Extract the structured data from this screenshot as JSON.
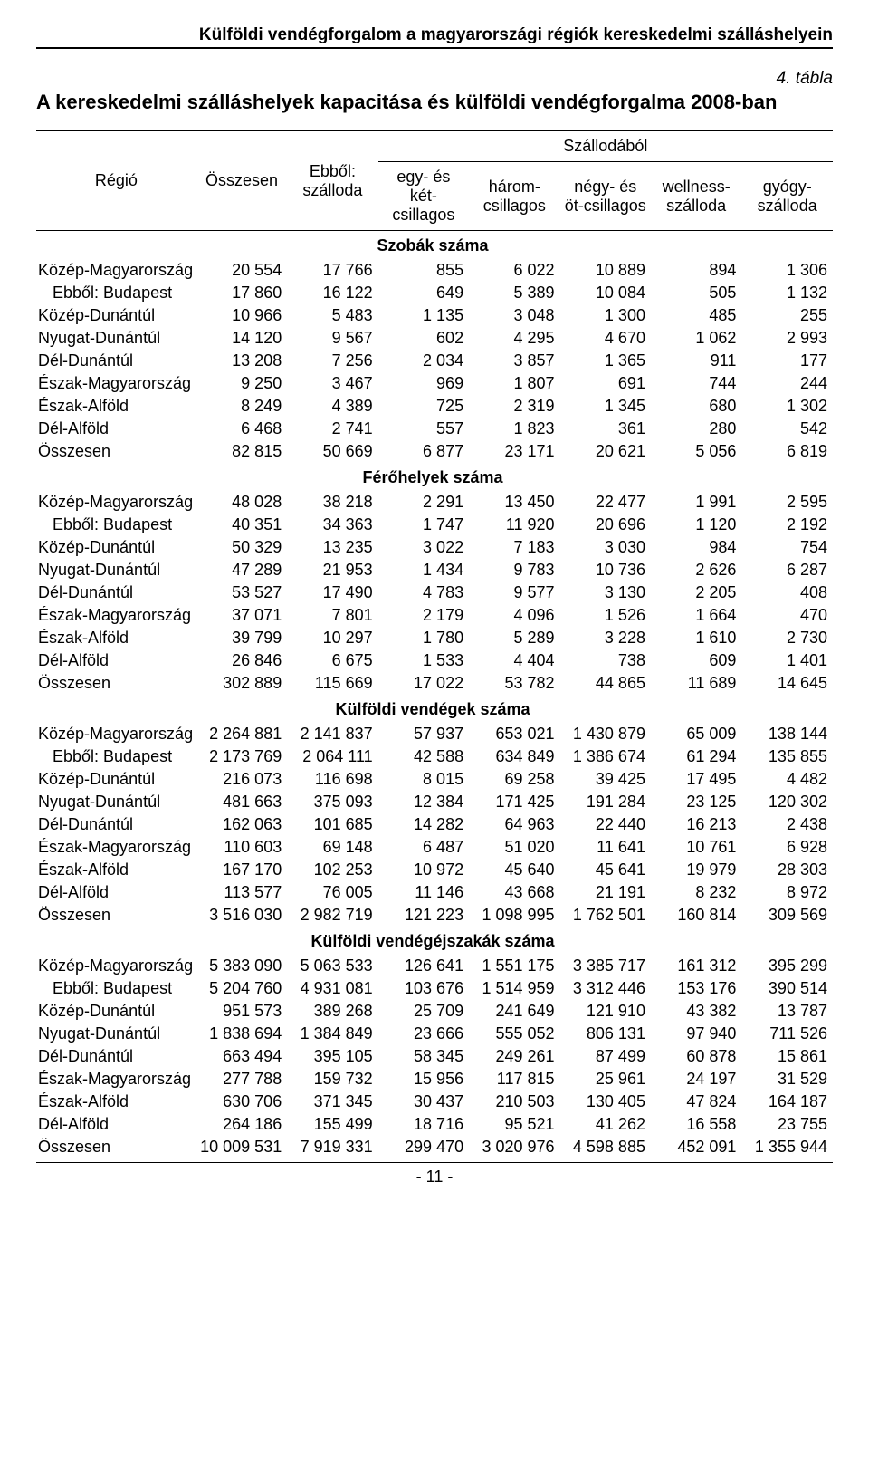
{
  "running_head": "Külföldi vendégforgalom a magyarországi régiók kereskedelmi szálláshelyein",
  "table_label": "4. tábla",
  "title": "A kereskedelmi szálláshelyek kapacitása és külföldi vendégforgalma 2008-ban",
  "page_number": "- 11 -",
  "header": {
    "region": "Régió",
    "total": "Összesen",
    "hotel_of_which": "Ebből: szálloda",
    "hotel_group": "Szállodából",
    "col_12star": "egy- és két-csillagos",
    "col_3star": "három-csillagos",
    "col_45star": "négy- és öt-csillagos",
    "col_wellness": "wellness-szálloda",
    "col_spa": "gyógy-szálloda"
  },
  "regions_display": [
    {
      "key": "kmo",
      "label": "Közép-Magyarország",
      "indent": false
    },
    {
      "key": "bud",
      "label": "Ebből: Budapest",
      "indent": true
    },
    {
      "key": "kd",
      "label": "Közép-Dunántúl",
      "indent": false
    },
    {
      "key": "nyd",
      "label": "Nyugat-Dunántúl",
      "indent": false
    },
    {
      "key": "dd",
      "label": "Dél-Dunántúl",
      "indent": false
    },
    {
      "key": "emo",
      "label": "Észak-Magyarország",
      "indent": false
    },
    {
      "key": "ea",
      "label": "Észak-Alföld",
      "indent": false
    },
    {
      "key": "da",
      "label": "Dél-Alföld",
      "indent": false
    },
    {
      "key": "tot",
      "label": "Összesen",
      "indent": false
    }
  ],
  "sections": [
    {
      "heading": "Szobák száma",
      "rows": {
        "kmo": [
          "20 554",
          "17 766",
          "855",
          "6 022",
          "10 889",
          "894",
          "1 306"
        ],
        "bud": [
          "17 860",
          "16 122",
          "649",
          "5 389",
          "10 084",
          "505",
          "1 132"
        ],
        "kd": [
          "10 966",
          "5 483",
          "1 135",
          "3 048",
          "1 300",
          "485",
          "255"
        ],
        "nyd": [
          "14 120",
          "9 567",
          "602",
          "4 295",
          "4 670",
          "1 062",
          "2 993"
        ],
        "dd": [
          "13 208",
          "7 256",
          "2 034",
          "3 857",
          "1 365",
          "911",
          "177"
        ],
        "emo": [
          "9 250",
          "3 467",
          "969",
          "1 807",
          "691",
          "744",
          "244"
        ],
        "ea": [
          "8 249",
          "4 389",
          "725",
          "2 319",
          "1 345",
          "680",
          "1 302"
        ],
        "da": [
          "6 468",
          "2 741",
          "557",
          "1 823",
          "361",
          "280",
          "542"
        ],
        "tot": [
          "82 815",
          "50 669",
          "6 877",
          "23 171",
          "20 621",
          "5 056",
          "6 819"
        ]
      }
    },
    {
      "heading": "Férőhelyek száma",
      "rows": {
        "kmo": [
          "48 028",
          "38 218",
          "2 291",
          "13 450",
          "22 477",
          "1 991",
          "2 595"
        ],
        "bud": [
          "40 351",
          "34 363",
          "1 747",
          "11 920",
          "20 696",
          "1 120",
          "2 192"
        ],
        "kd": [
          "50 329",
          "13 235",
          "3 022",
          "7 183",
          "3 030",
          "984",
          "754"
        ],
        "nyd": [
          "47 289",
          "21 953",
          "1 434",
          "9 783",
          "10 736",
          "2 626",
          "6 287"
        ],
        "dd": [
          "53 527",
          "17 490",
          "4 783",
          "9 577",
          "3 130",
          "2 205",
          "408"
        ],
        "emo": [
          "37 071",
          "7 801",
          "2 179",
          "4 096",
          "1 526",
          "1 664",
          "470"
        ],
        "ea": [
          "39 799",
          "10 297",
          "1 780",
          "5 289",
          "3 228",
          "1 610",
          "2 730"
        ],
        "da": [
          "26 846",
          "6 675",
          "1 533",
          "4 404",
          "738",
          "609",
          "1 401"
        ],
        "tot": [
          "302 889",
          "115 669",
          "17 022",
          "53 782",
          "44 865",
          "11 689",
          "14 645"
        ]
      }
    },
    {
      "heading": "Külföldi vendégek száma",
      "rows": {
        "kmo": [
          "2 264 881",
          "2 141 837",
          "57 937",
          "653 021",
          "1 430 879",
          "65 009",
          "138 144"
        ],
        "bud": [
          "2 173 769",
          "2 064 111",
          "42 588",
          "634 849",
          "1 386 674",
          "61 294",
          "135 855"
        ],
        "kd": [
          "216 073",
          "116 698",
          "8 015",
          "69 258",
          "39 425",
          "17 495",
          "4 482"
        ],
        "nyd": [
          "481 663",
          "375 093",
          "12 384",
          "171 425",
          "191 284",
          "23 125",
          "120 302"
        ],
        "dd": [
          "162 063",
          "101 685",
          "14 282",
          "64 963",
          "22 440",
          "16 213",
          "2 438"
        ],
        "emo": [
          "110 603",
          "69 148",
          "6 487",
          "51 020",
          "11 641",
          "10 761",
          "6 928"
        ],
        "ea": [
          "167 170",
          "102 253",
          "10 972",
          "45 640",
          "45 641",
          "19 979",
          "28 303"
        ],
        "da": [
          "113 577",
          "76 005",
          "11 146",
          "43 668",
          "21 191",
          "8 232",
          "8 972"
        ],
        "tot": [
          "3 516 030",
          "2 982 719",
          "121 223",
          "1 098 995",
          "1 762 501",
          "160 814",
          "309 569"
        ]
      }
    },
    {
      "heading": "Külföldi vendégéjszakák száma",
      "rows": {
        "kmo": [
          "5 383 090",
          "5 063 533",
          "126 641",
          "1 551 175",
          "3 385 717",
          "161 312",
          "395 299"
        ],
        "bud": [
          "5 204 760",
          "4 931 081",
          "103 676",
          "1 514 959",
          "3 312 446",
          "153 176",
          "390 514"
        ],
        "kd": [
          "951 573",
          "389 268",
          "25 709",
          "241 649",
          "121 910",
          "43 382",
          "13 787"
        ],
        "nyd": [
          "1 838 694",
          "1 384 849",
          "23 666",
          "555 052",
          "806 131",
          "97 940",
          "711 526"
        ],
        "dd": [
          "663 494",
          "395 105",
          "58 345",
          "249 261",
          "87 499",
          "60 878",
          "15 861"
        ],
        "emo": [
          "277 788",
          "159 732",
          "15 956",
          "117 815",
          "25 961",
          "24 197",
          "31 529"
        ],
        "ea": [
          "630 706",
          "371 345",
          "30 437",
          "210 503",
          "130 405",
          "47 824",
          "164 187"
        ],
        "da": [
          "264 186",
          "155 499",
          "18 716",
          "95 521",
          "41 262",
          "16 558",
          "23 755"
        ],
        "tot": [
          "10 009 531",
          "7 919 331",
          "299 470",
          "3 020 976",
          "4 598 885",
          "452 091",
          "1 355 944"
        ]
      }
    }
  ]
}
